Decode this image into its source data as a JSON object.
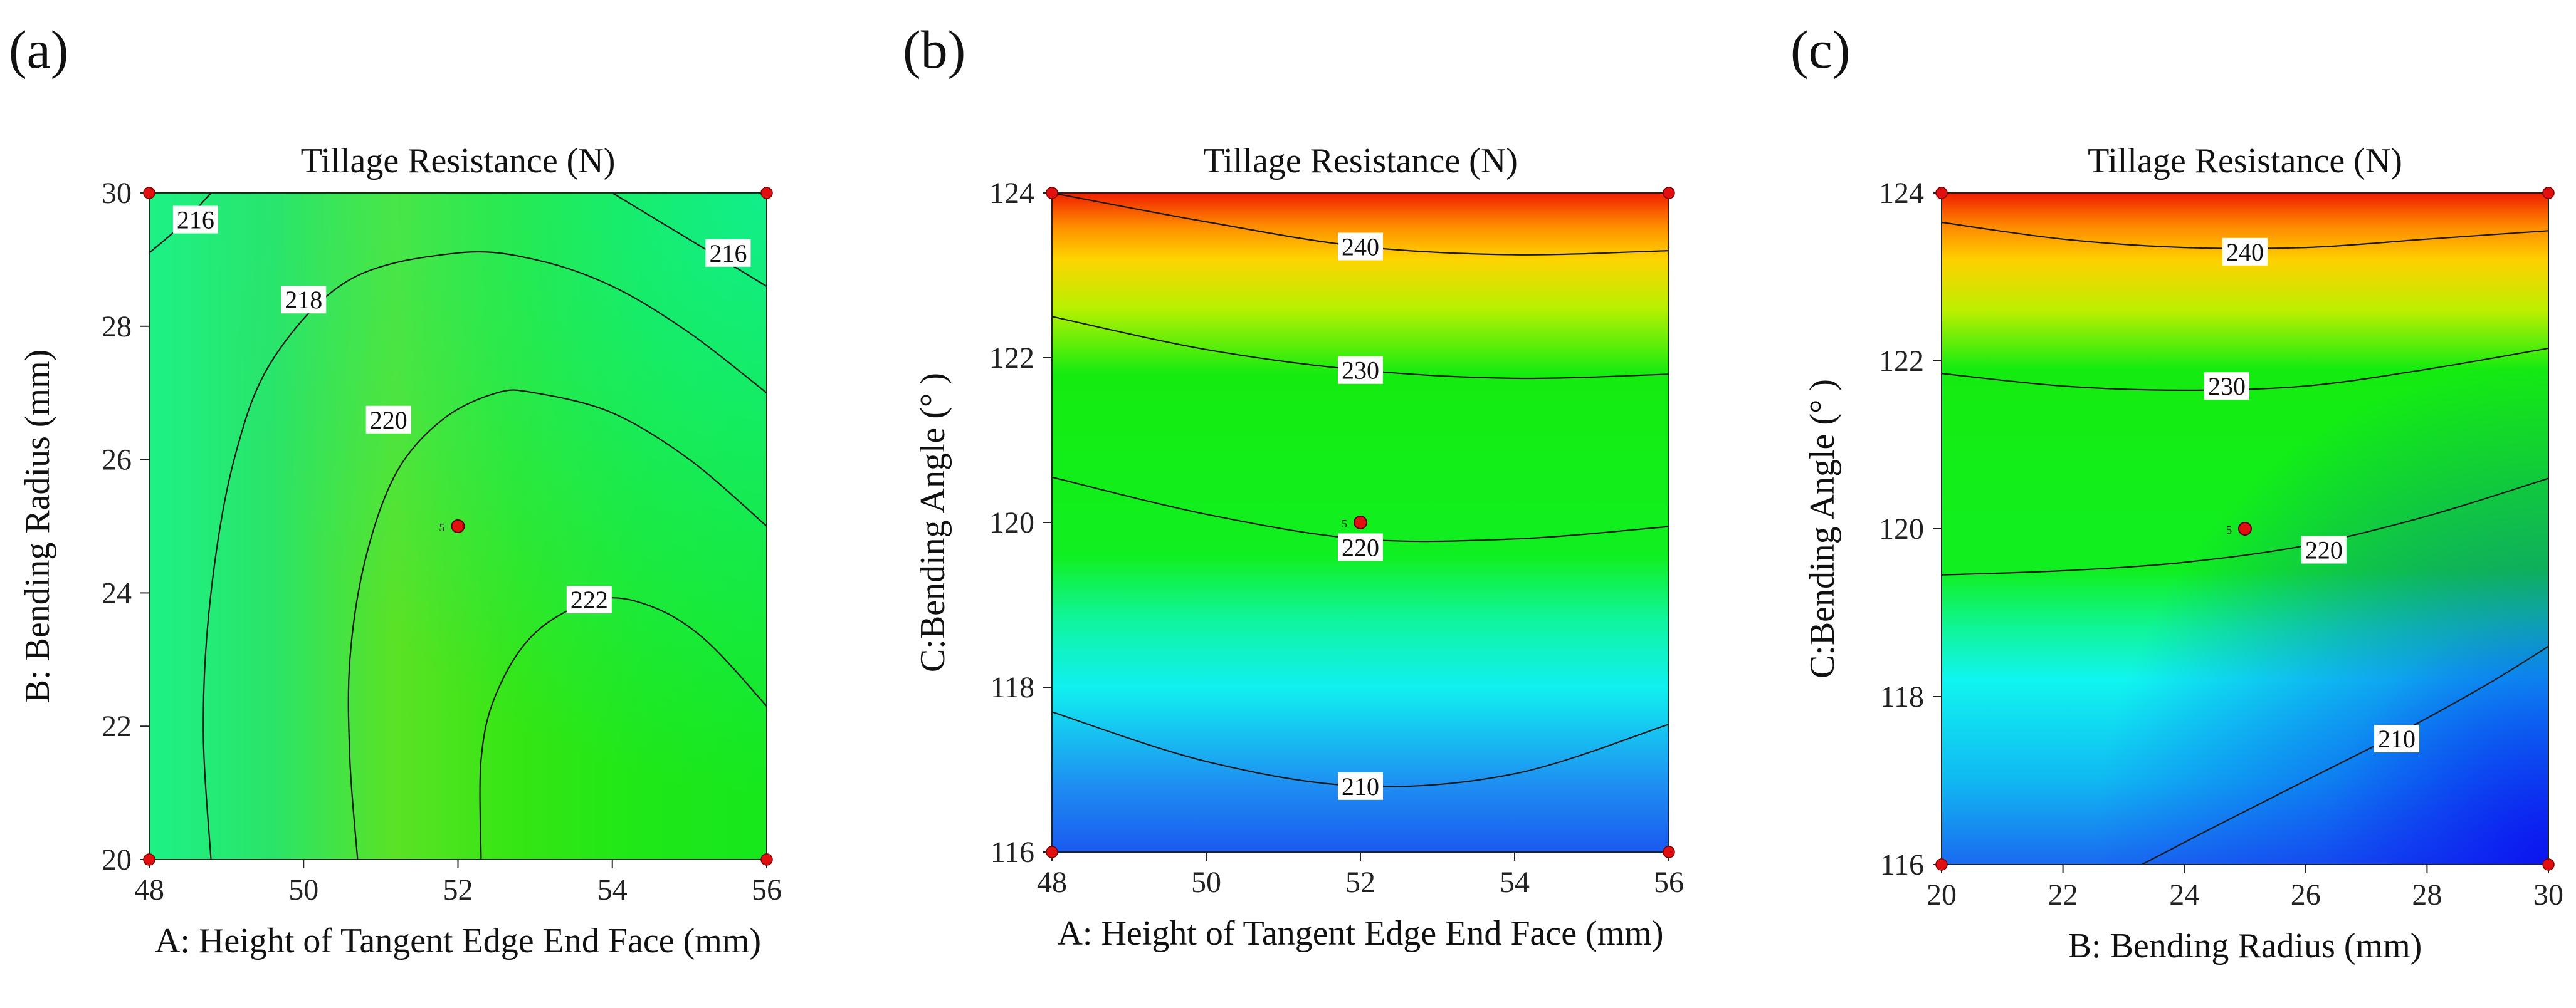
{
  "figure": {
    "domain": "Chart"
  },
  "chart_data": [
    {
      "id": "a",
      "panel_label": "(a)",
      "type": "contour",
      "title": "Tillage Resistance (N)",
      "xlabel": "A: Height of Tangent Edge End Face (mm)",
      "ylabel": "B: Bending Radius (mm)",
      "xlim": [
        48,
        56
      ],
      "ylim": [
        20,
        30
      ],
      "xticks": [
        "48",
        "50",
        "52",
        "54",
        "56"
      ],
      "yticks": [
        "20",
        "22",
        "24",
        "26",
        "28",
        "30"
      ],
      "colorscale": [
        "#0000ff",
        "#00ffff",
        "#00ff00",
        "#ffff00",
        "#ff0000"
      ],
      "design_points": [
        [
          48,
          20
        ],
        [
          56,
          20
        ],
        [
          48,
          30
        ],
        [
          56,
          30
        ]
      ],
      "center_point": [
        52,
        25
      ],
      "center_count": "5",
      "contour_labels": [
        {
          "text": "216",
          "x": 48.6,
          "y": 29.6
        },
        {
          "text": "216",
          "x": 55.5,
          "y": 29.1
        },
        {
          "text": "218",
          "x": 50.0,
          "y": 28.4
        },
        {
          "text": "220",
          "x": 51.1,
          "y": 26.6
        },
        {
          "text": "222",
          "x": 53.7,
          "y": 23.9
        }
      ],
      "contours": [
        {
          "level": 216,
          "points": [
            [
              48.0,
              29.1
            ],
            [
              48.4,
              29.5
            ],
            [
              48.8,
              30.0
            ]
          ]
        },
        {
          "level": 216,
          "points": [
            [
              54.0,
              30.0
            ],
            [
              55.0,
              29.3
            ],
            [
              56.0,
              28.6
            ]
          ]
        },
        {
          "level": 218,
          "points": [
            [
              48.8,
              20.0
            ],
            [
              48.7,
              22.0
            ],
            [
              48.8,
              24.0
            ],
            [
              49.1,
              26.0
            ],
            [
              49.6,
              27.5
            ],
            [
              50.6,
              28.7
            ],
            [
              52.0,
              29.1
            ],
            [
              53.0,
              29.0
            ],
            [
              54.0,
              28.6
            ],
            [
              55.0,
              27.9
            ],
            [
              56.0,
              27.0
            ]
          ]
        },
        {
          "level": 220,
          "points": [
            [
              50.7,
              20.0
            ],
            [
              50.6,
              21.5
            ],
            [
              50.6,
              23.0
            ],
            [
              50.8,
              24.5
            ],
            [
              51.2,
              25.8
            ],
            [
              51.8,
              26.6
            ],
            [
              52.5,
              27.0
            ],
            [
              53.0,
              27.0
            ],
            [
              54.0,
              26.7
            ],
            [
              55.0,
              26.0
            ],
            [
              56.0,
              25.0
            ]
          ]
        },
        {
          "level": 222,
          "points": [
            [
              52.3,
              20.0
            ],
            [
              52.3,
              21.5
            ],
            [
              52.5,
              22.5
            ],
            [
              53.0,
              23.4
            ],
            [
              53.8,
              23.9
            ],
            [
              54.5,
              23.8
            ],
            [
              55.2,
              23.3
            ],
            [
              56.0,
              22.3
            ]
          ]
        }
      ],
      "field": {
        "x_gradient": [
          "#1df286",
          "#2ae468",
          "#5be225",
          "#34e613",
          "#1ee818",
          "#16e81c"
        ],
        "top_right_tint": "#10f0b0"
      }
    },
    {
      "id": "b",
      "panel_label": "(b)",
      "type": "contour",
      "title": "Tillage Resistance (N)",
      "xlabel": "A: Height of Tangent Edge End Face (mm)",
      "ylabel": "C:Bending Angle (°  )",
      "xlim": [
        48,
        56
      ],
      "ylim": [
        116,
        124
      ],
      "xticks": [
        "48",
        "50",
        "52",
        "54",
        "56"
      ],
      "yticks": [
        "116",
        "118",
        "120",
        "122",
        "124"
      ],
      "colorscale": [
        "#0000ff",
        "#00ffff",
        "#00ff00",
        "#ffff00",
        "#ff0000"
      ],
      "design_points": [
        [
          48,
          116
        ],
        [
          56,
          116
        ],
        [
          48,
          124
        ],
        [
          56,
          124
        ]
      ],
      "center_point": [
        52,
        120
      ],
      "center_count": "5",
      "contour_labels": [
        {
          "text": "240",
          "x": 52.0,
          "y": 123.35
        },
        {
          "text": "230",
          "x": 52.0,
          "y": 121.85
        },
        {
          "text": "220",
          "x": 52.0,
          "y": 119.7
        },
        {
          "text": "210",
          "x": 52.0,
          "y": 116.8
        }
      ],
      "contours": [
        {
          "level": 240,
          "points": [
            [
              48.0,
              124.0
            ],
            [
              50.0,
              123.65
            ],
            [
              52.0,
              123.35
            ],
            [
              54.0,
              123.25
            ],
            [
              56.0,
              123.3
            ]
          ]
        },
        {
          "level": 230,
          "points": [
            [
              48.0,
              122.5
            ],
            [
              50.0,
              122.1
            ],
            [
              52.0,
              121.85
            ],
            [
              54.0,
              121.75
            ],
            [
              56.0,
              121.8
            ]
          ]
        },
        {
          "level": 220,
          "points": [
            [
              48.0,
              120.55
            ],
            [
              50.0,
              120.1
            ],
            [
              52.0,
              119.8
            ],
            [
              54.0,
              119.8
            ],
            [
              56.0,
              119.95
            ]
          ]
        },
        {
          "level": 210,
          "points": [
            [
              48.0,
              117.7
            ],
            [
              50.0,
              117.1
            ],
            [
              52.0,
              116.8
            ],
            [
              54.0,
              116.95
            ],
            [
              56.0,
              117.55
            ]
          ]
        }
      ],
      "field": {
        "y_stops": [
          [
            116,
            "#1a5af0"
          ],
          [
            116.8,
            "#1e8df2"
          ],
          [
            118,
            "#10f0f0"
          ],
          [
            118.8,
            "#10f5a0"
          ],
          [
            119.6,
            "#10f020"
          ],
          [
            121.8,
            "#14ec10"
          ],
          [
            122.6,
            "#b8f000"
          ],
          [
            123.2,
            "#ffd400"
          ],
          [
            123.6,
            "#ff8c00"
          ],
          [
            124,
            "#f01e00"
          ]
        ]
      }
    },
    {
      "id": "c",
      "panel_label": "(c)",
      "type": "contour",
      "title": "Tillage Resistance (N)",
      "xlabel": "B: Bending Radius (mm)",
      "ylabel": "C:Bending Angle (°  )",
      "xlim": [
        20,
        30
      ],
      "ylim": [
        116,
        124
      ],
      "xticks": [
        "20",
        "22",
        "24",
        "26",
        "28",
        "30"
      ],
      "yticks": [
        "116",
        "118",
        "120",
        "122",
        "124"
      ],
      "colorscale": [
        "#0000ff",
        "#00ffff",
        "#00ff00",
        "#ffff00",
        "#ff0000"
      ],
      "design_points": [
        [
          20,
          116
        ],
        [
          30,
          116
        ],
        [
          20,
          124
        ],
        [
          30,
          124
        ]
      ],
      "center_point": [
        25,
        120
      ],
      "center_count": "5",
      "contour_labels": [
        {
          "text": "240",
          "x": 25.0,
          "y": 123.3
        },
        {
          "text": "230",
          "x": 24.7,
          "y": 121.7
        },
        {
          "text": "220",
          "x": 26.3,
          "y": 119.75
        },
        {
          "text": "210",
          "x": 27.5,
          "y": 117.5
        }
      ],
      "contours": [
        {
          "level": 240,
          "points": [
            [
              20.0,
              123.65
            ],
            [
              22.0,
              123.45
            ],
            [
              24.0,
              123.35
            ],
            [
              26.0,
              123.35
            ],
            [
              28.0,
              123.45
            ],
            [
              30.0,
              123.55
            ]
          ]
        },
        {
          "level": 230,
          "points": [
            [
              20.0,
              121.85
            ],
            [
              22.0,
              121.7
            ],
            [
              24.0,
              121.65
            ],
            [
              26.0,
              121.7
            ],
            [
              28.0,
              121.9
            ],
            [
              30.0,
              122.15
            ]
          ]
        },
        {
          "level": 220,
          "points": [
            [
              20.0,
              119.45
            ],
            [
              22.0,
              119.5
            ],
            [
              24.0,
              119.6
            ],
            [
              26.0,
              119.8
            ],
            [
              28.0,
              120.15
            ],
            [
              30.0,
              120.6
            ]
          ]
        },
        {
          "level": 210,
          "points": [
            [
              23.3,
              116.0
            ],
            [
              24.5,
              116.45
            ],
            [
              26.0,
              117.0
            ],
            [
              27.5,
              117.55
            ],
            [
              29.0,
              118.15
            ],
            [
              30.0,
              118.6
            ]
          ]
        }
      ],
      "field": {
        "y_stops": [
          [
            116,
            "#1a6af0"
          ],
          [
            117,
            "#10b8f2"
          ],
          [
            118.2,
            "#10f5f0"
          ],
          [
            118.8,
            "#10f59a"
          ],
          [
            119.5,
            "#10f020"
          ],
          [
            121.9,
            "#14ec10"
          ],
          [
            122.6,
            "#bcef00"
          ],
          [
            123.2,
            "#ffd000"
          ],
          [
            123.6,
            "#ff8a00"
          ],
          [
            124,
            "#f01e00"
          ]
        ],
        "bottom_right_tint": "#0a10f0"
      }
    }
  ]
}
